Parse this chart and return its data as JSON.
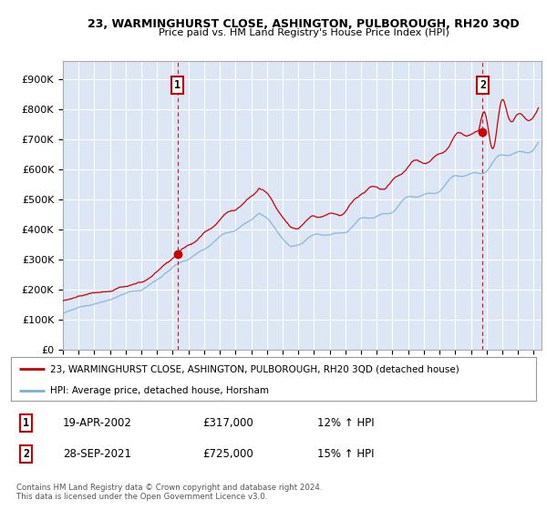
{
  "title1": "23, WARMINGHURST CLOSE, ASHINGTON, PULBOROUGH, RH20 3QD",
  "title2": "Price paid vs. HM Land Registry's House Price Index (HPI)",
  "ylim": [
    0,
    960000
  ],
  "yticks": [
    0,
    100000,
    200000,
    300000,
    400000,
    500000,
    600000,
    700000,
    800000,
    900000
  ],
  "ytick_labels": [
    "£0",
    "£100K",
    "£200K",
    "£300K",
    "£400K",
    "£500K",
    "£600K",
    "£700K",
    "£800K",
    "£900K"
  ],
  "xlim_start": 1995.0,
  "xlim_end": 2025.5,
  "plot_bg": "#dce6f5",
  "grid_color": "#ffffff",
  "red_line_color": "#cc0000",
  "blue_line_color": "#7bafd4",
  "legend_label_red": "23, WARMINGHURST CLOSE, ASHINGTON, PULBOROUGH, RH20 3QD (detached house)",
  "legend_label_blue": "HPI: Average price, detached house, Horsham",
  "sale1_x": 2002.3,
  "sale1_y": 317000,
  "sale2_x": 2021.75,
  "sale2_y": 725000,
  "annotation1_date": "19-APR-2002",
  "annotation1_price": "£317,000",
  "annotation1_hpi": "12% ↑ HPI",
  "annotation2_date": "28-SEP-2021",
  "annotation2_price": "£725,000",
  "annotation2_hpi": "15% ↑ HPI",
  "footnote": "Contains HM Land Registry data © Crown copyright and database right 2024.\nThis data is licensed under the Open Government Licence v3.0."
}
